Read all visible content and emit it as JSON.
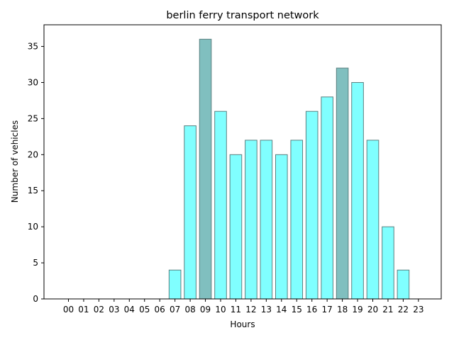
{
  "chart_data": {
    "type": "bar",
    "title": "berlin ferry transport network",
    "xlabel": "Hours",
    "ylabel": "Number of vehicles",
    "categories": [
      "00",
      "01",
      "02",
      "03",
      "04",
      "05",
      "06",
      "07",
      "08",
      "09",
      "10",
      "11",
      "12",
      "13",
      "14",
      "15",
      "16",
      "17",
      "18",
      "19",
      "20",
      "21",
      "22",
      "23"
    ],
    "values": [
      0,
      0,
      0,
      0,
      0,
      0,
      0,
      4,
      24,
      36,
      26,
      20,
      22,
      22,
      20,
      22,
      26,
      28,
      32,
      30,
      22,
      10,
      4,
      0
    ],
    "highlighted": [
      "09",
      "18"
    ],
    "ylim": [
      0,
      38
    ],
    "yticks": [
      0,
      5,
      10,
      15,
      20,
      25,
      30,
      35
    ],
    "grid": false,
    "colors": {
      "bar": "#80ffff",
      "bar_highlight": "#80bfbf",
      "bar_edge": "#5a8080"
    }
  }
}
